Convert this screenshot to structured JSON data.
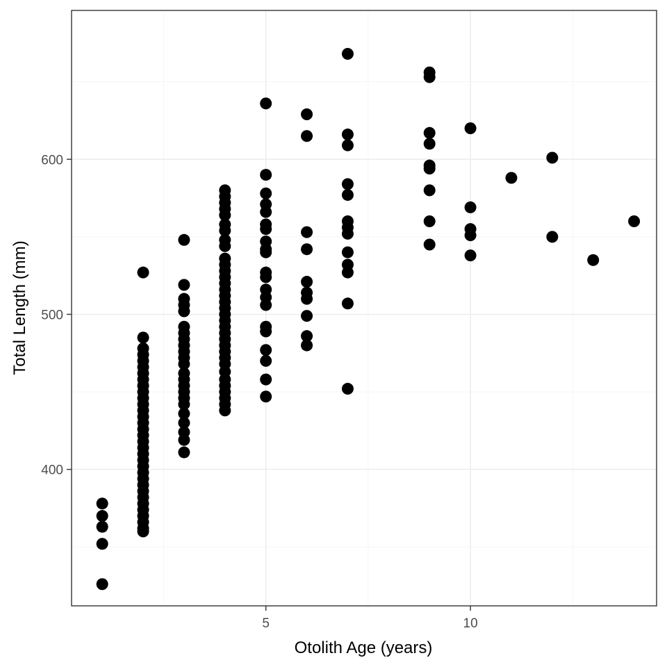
{
  "colors": {
    "point": "#000000",
    "grid": "#ebebeb",
    "border": "#333333",
    "tick_text": "#4d4d4d"
  },
  "chart_data": {
    "type": "scatter",
    "title": "",
    "xlabel": "Otolith Age (years)",
    "ylabel": "Total Length (mm)",
    "xlim": [
      0.25,
      14.55
    ],
    "ylim": [
      312,
      696
    ],
    "x_ticks": [
      5,
      10
    ],
    "x_tick_labels": [
      "5",
      "10"
    ],
    "y_ticks": [
      400,
      500,
      600
    ],
    "y_tick_labels": [
      "400",
      "500",
      "600"
    ],
    "grid": true,
    "legend": "none",
    "points": [
      [
        1,
        378
      ],
      [
        1,
        370
      ],
      [
        1,
        363
      ],
      [
        1,
        352
      ],
      [
        1,
        326
      ],
      [
        2,
        527
      ],
      [
        2,
        485
      ],
      [
        2,
        478
      ],
      [
        2,
        474
      ],
      [
        2,
        470
      ],
      [
        2,
        466
      ],
      [
        2,
        462
      ],
      [
        2,
        458
      ],
      [
        2,
        454
      ],
      [
        2,
        450
      ],
      [
        2,
        446
      ],
      [
        2,
        442
      ],
      [
        2,
        438
      ],
      [
        2,
        434
      ],
      [
        2,
        430
      ],
      [
        2,
        426
      ],
      [
        2,
        422
      ],
      [
        2,
        418
      ],
      [
        2,
        414
      ],
      [
        2,
        410
      ],
      [
        2,
        406
      ],
      [
        2,
        402
      ],
      [
        2,
        398
      ],
      [
        2,
        394
      ],
      [
        2,
        390
      ],
      [
        2,
        386
      ],
      [
        2,
        382
      ],
      [
        2,
        378
      ],
      [
        2,
        374
      ],
      [
        2,
        370
      ],
      [
        2,
        366
      ],
      [
        2,
        362
      ],
      [
        2,
        360
      ],
      [
        3,
        548
      ],
      [
        3,
        519
      ],
      [
        3,
        510
      ],
      [
        3,
        506
      ],
      [
        3,
        502
      ],
      [
        3,
        492
      ],
      [
        3,
        488
      ],
      [
        3,
        484
      ],
      [
        3,
        480
      ],
      [
        3,
        476
      ],
      [
        3,
        472
      ],
      [
        3,
        468
      ],
      [
        3,
        462
      ],
      [
        3,
        458
      ],
      [
        3,
        454
      ],
      [
        3,
        450
      ],
      [
        3,
        446
      ],
      [
        3,
        442
      ],
      [
        3,
        436
      ],
      [
        3,
        430
      ],
      [
        3,
        424
      ],
      [
        3,
        419
      ],
      [
        3,
        411
      ],
      [
        4,
        580
      ],
      [
        4,
        576
      ],
      [
        4,
        572
      ],
      [
        4,
        568
      ],
      [
        4,
        564
      ],
      [
        4,
        558
      ],
      [
        4,
        554
      ],
      [
        4,
        548
      ],
      [
        4,
        544
      ],
      [
        4,
        536
      ],
      [
        4,
        532
      ],
      [
        4,
        528
      ],
      [
        4,
        524
      ],
      [
        4,
        520
      ],
      [
        4,
        516
      ],
      [
        4,
        512
      ],
      [
        4,
        508
      ],
      [
        4,
        504
      ],
      [
        4,
        500
      ],
      [
        4,
        496
      ],
      [
        4,
        492
      ],
      [
        4,
        488
      ],
      [
        4,
        484
      ],
      [
        4,
        480
      ],
      [
        4,
        476
      ],
      [
        4,
        472
      ],
      [
        4,
        468
      ],
      [
        4,
        463
      ],
      [
        4,
        458
      ],
      [
        4,
        454
      ],
      [
        4,
        450
      ],
      [
        4,
        446
      ],
      [
        4,
        442
      ],
      [
        4,
        438
      ],
      [
        5,
        636
      ],
      [
        5,
        590
      ],
      [
        5,
        578
      ],
      [
        5,
        571
      ],
      [
        5,
        566
      ],
      [
        5,
        558
      ],
      [
        5,
        555
      ],
      [
        5,
        547
      ],
      [
        5,
        542
      ],
      [
        5,
        540
      ],
      [
        5,
        527
      ],
      [
        5,
        524
      ],
      [
        5,
        516
      ],
      [
        5,
        511
      ],
      [
        5,
        506
      ],
      [
        5,
        492
      ],
      [
        5,
        489
      ],
      [
        5,
        477
      ],
      [
        5,
        470
      ],
      [
        5,
        458
      ],
      [
        5,
        447
      ],
      [
        6,
        629
      ],
      [
        6,
        615
      ],
      [
        6,
        553
      ],
      [
        6,
        542
      ],
      [
        6,
        521
      ],
      [
        6,
        514
      ],
      [
        6,
        510
      ],
      [
        6,
        499
      ],
      [
        6,
        486
      ],
      [
        6,
        480
      ],
      [
        7,
        668
      ],
      [
        7,
        616
      ],
      [
        7,
        609
      ],
      [
        7,
        584
      ],
      [
        7,
        577
      ],
      [
        7,
        560
      ],
      [
        7,
        556
      ],
      [
        7,
        552
      ],
      [
        7,
        540
      ],
      [
        7,
        532
      ],
      [
        7,
        527
      ],
      [
        7,
        507
      ],
      [
        7,
        452
      ],
      [
        9,
        656
      ],
      [
        9,
        653
      ],
      [
        9,
        617
      ],
      [
        9,
        610
      ],
      [
        9,
        596
      ],
      [
        9,
        594
      ],
      [
        9,
        580
      ],
      [
        9,
        560
      ],
      [
        9,
        545
      ],
      [
        10,
        620
      ],
      [
        10,
        569
      ],
      [
        10,
        555
      ],
      [
        10,
        551
      ],
      [
        10,
        538
      ],
      [
        11,
        588
      ],
      [
        12,
        601
      ],
      [
        12,
        550
      ],
      [
        13,
        535
      ],
      [
        14,
        560
      ]
    ]
  }
}
